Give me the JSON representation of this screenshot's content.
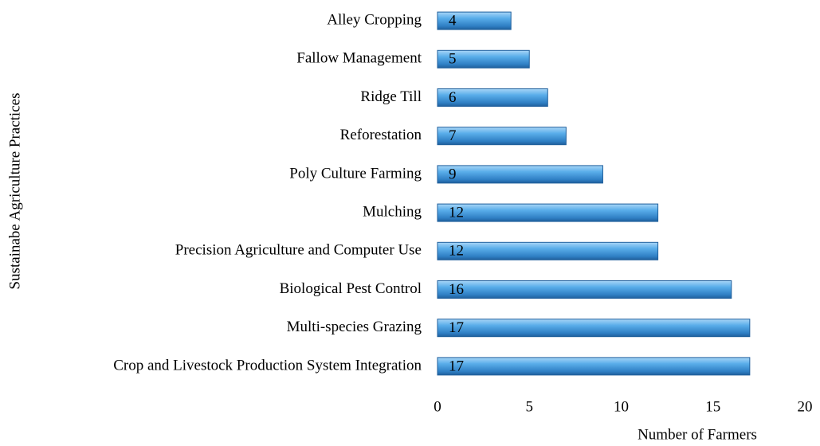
{
  "chart_data": {
    "type": "barh",
    "xlabel": "Number of Farmers",
    "ylabel": "Sustainabe Agriculture Practices",
    "categories": [
      "Alley Cropping",
      "Fallow Management",
      "Ridge Till",
      "Reforestation",
      "Poly Culture Farming",
      "Mulching",
      "Precision Agriculture and Computer Use",
      "Biological Pest Control",
      "Multi-species Grazing",
      "Crop and Livestock Production System Integration"
    ],
    "values": [
      4,
      5,
      6,
      7,
      9,
      12,
      12,
      16,
      17,
      17
    ],
    "color": "#3d8fd8",
    "xlim": [
      0,
      20
    ],
    "xticks": [
      0,
      5,
      10,
      15,
      20
    ]
  }
}
